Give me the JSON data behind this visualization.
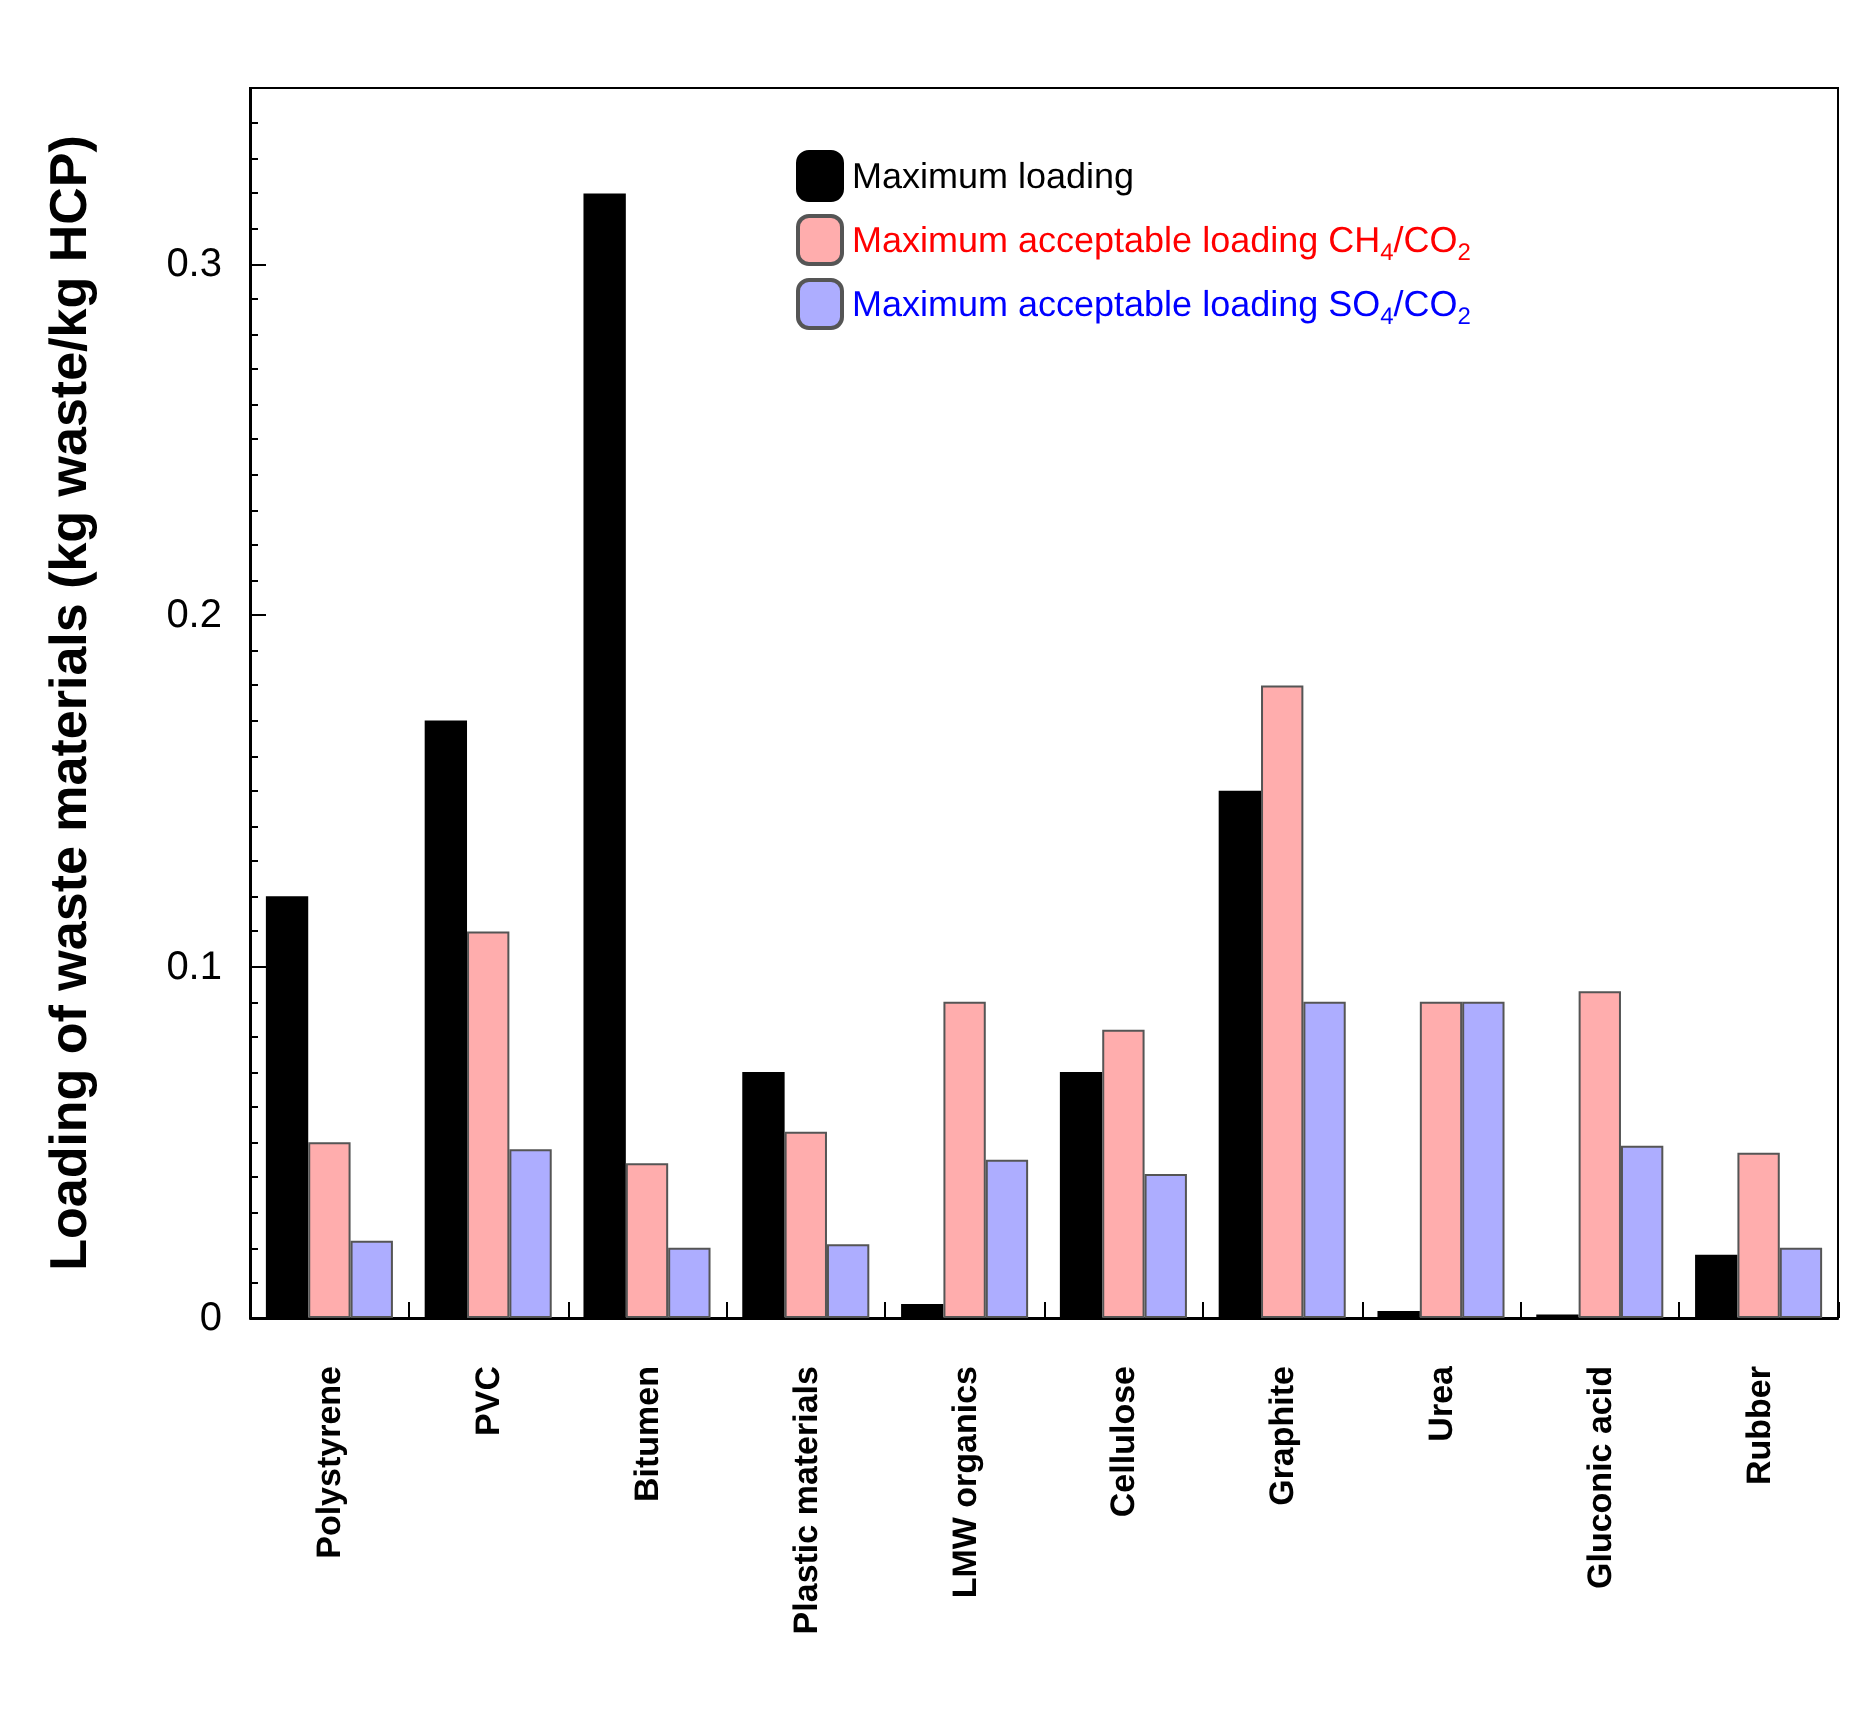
{
  "chart_data": {
    "type": "bar",
    "ylabel": "Loading of waste materials (kg waste/kg HCP)",
    "categories": [
      "Polystyrene",
      "PVC",
      "Bitumen",
      "Plastic materials",
      "LMW organics",
      "Cellulose",
      "Graphite",
      "Urea",
      "Gluconic acid",
      "Rubber"
    ],
    "series": [
      {
        "name": "Maximum loading",
        "color": "#000000",
        "values": [
          0.12,
          0.17,
          0.32,
          0.07,
          0.004,
          0.07,
          0.15,
          0.002,
          0.001,
          0.018
        ]
      },
      {
        "name": "Maximum acceptable loading CH$_{4}$/CO$_{2}$",
        "color": "#ffadad",
        "values": [
          0.05,
          0.11,
          0.044,
          0.053,
          0.09,
          0.082,
          0.18,
          0.09,
          0.093,
          0.047
        ]
      },
      {
        "name": "Maximum acceptable loading SO$_{4}$/CO$_{2}$",
        "color": "#adadff",
        "values": [
          0.022,
          0.048,
          0.02,
          0.021,
          0.045,
          0.041,
          0.09,
          0.09,
          0.049,
          0.02
        ]
      }
    ],
    "ylim": [
      0,
      0.35
    ],
    "yticks": [
      0,
      0.1,
      0.2,
      0.3
    ],
    "grid": false,
    "legend": "top right"
  }
}
